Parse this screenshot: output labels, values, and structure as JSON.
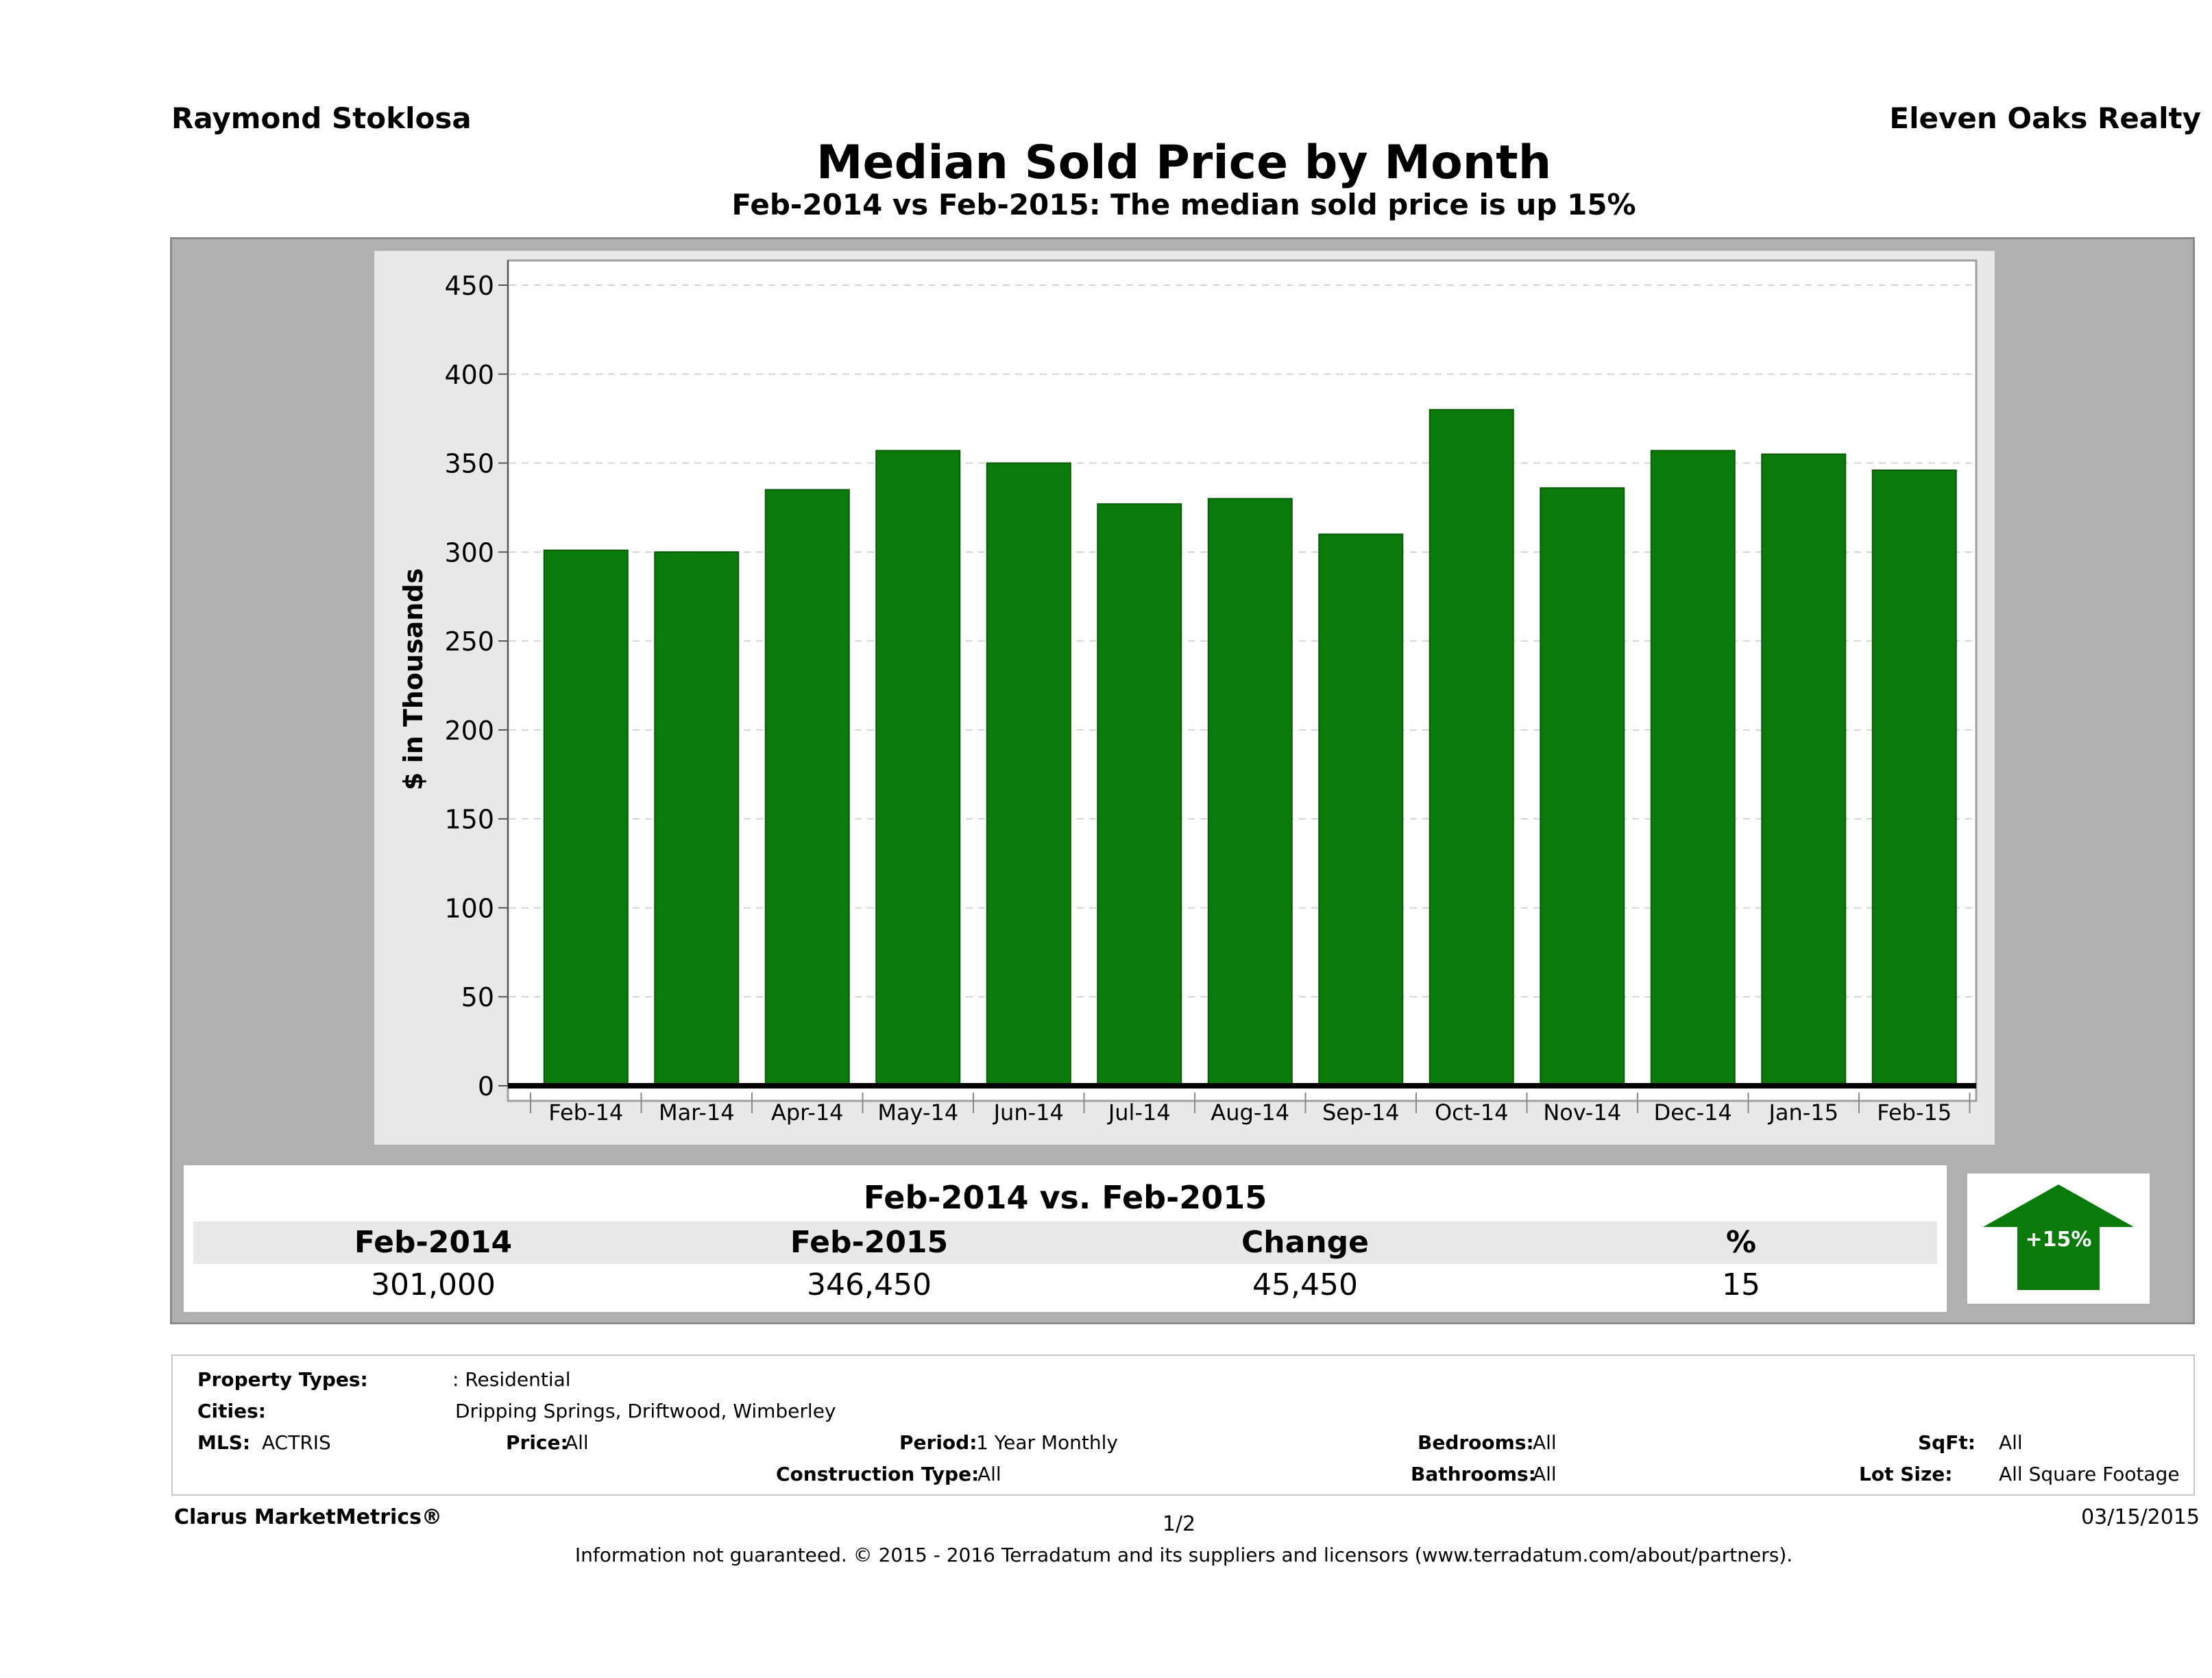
{
  "header": {
    "agent": "Raymond Stoklosa",
    "company": "Eleven Oaks Realty",
    "title": "Median Sold Price by Month",
    "subtitle": "Feb-2014 vs Feb-2015: The median sold price is up 15%"
  },
  "chart_data": {
    "type": "bar",
    "categories": [
      "Feb-14",
      "Mar-14",
      "Apr-14",
      "May-14",
      "Jun-14",
      "Jul-14",
      "Aug-14",
      "Sep-14",
      "Oct-14",
      "Nov-14",
      "Dec-14",
      "Jan-15",
      "Feb-15"
    ],
    "values": [
      301,
      300,
      335,
      357,
      350,
      327,
      330,
      310,
      380,
      336,
      357,
      355,
      346
    ],
    "ylabel": "$ in Thousands",
    "xlabel": "",
    "ylim": [
      0,
      450
    ],
    "yticks": [
      0,
      50,
      100,
      150,
      200,
      250,
      300,
      350,
      400,
      450
    ],
    "grid": true,
    "bar_color": "#0a7a0a"
  },
  "summary": {
    "heading": "Feb-2014 vs. Feb-2015",
    "columns": [
      "Feb-2014",
      "Feb-2015",
      "Change",
      "%"
    ],
    "values": [
      "301,000",
      "346,450",
      "45,450",
      "15"
    ],
    "badge": "+15%",
    "badge_color": "#0a7a0a"
  },
  "filters": {
    "property_types_label": "Property Types:",
    "property_types_value": ": Residential",
    "cities_label": "Cities:",
    "cities_value": "Dripping Springs, Driftwood, Wimberley",
    "mls_label": "MLS:",
    "mls_value": "ACTRIS",
    "price_label": "Price:",
    "price_value": "All",
    "period_label": "Period:",
    "period_value": "1 Year Monthly",
    "bedrooms_label": "Bedrooms:",
    "bedrooms_value": "All",
    "sqft_label": "SqFt:",
    "sqft_value": "All",
    "construction_label": "Construction Type:",
    "construction_value": "All",
    "bathrooms_label": "Bathrooms:",
    "bathrooms_value": "All",
    "lot_label": "Lot Size:",
    "lot_value": "All Square Footage"
  },
  "footer": {
    "brand": "Clarus MarketMetrics®",
    "page": "1/2",
    "date": "03/15/2015",
    "note": "Information not guaranteed. © 2015 - 2016 Terradatum and its suppliers and licensors (www.terradatum.com/about/partners)."
  }
}
